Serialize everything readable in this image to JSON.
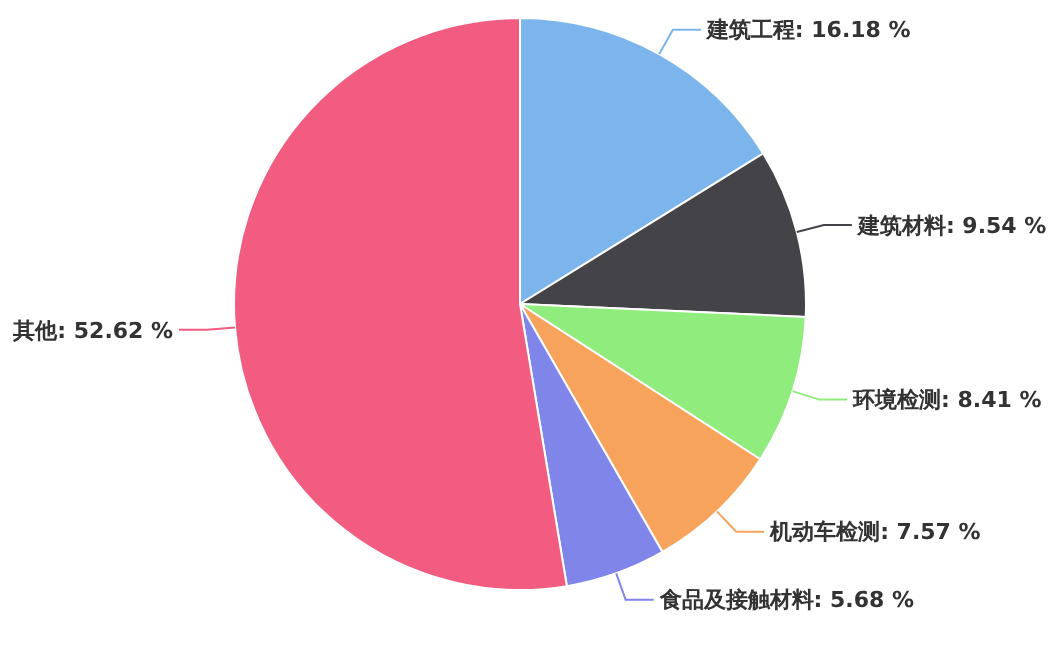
{
  "chart_data": {
    "type": "pie",
    "categories": [
      "建筑工程",
      "建筑材料",
      "环境检测",
      "机动车检测",
      "食品及接触材料",
      "其他"
    ],
    "values": [
      16.18,
      9.54,
      8.41,
      7.57,
      5.68,
      52.62
    ],
    "value_labels": [
      "16.18 %",
      "9.54 %",
      "8.41 %",
      "7.57 %",
      "5.68 %",
      "52.62 %"
    ],
    "colors": [
      "#7cb5ec",
      "#434348",
      "#90ed7d",
      "#f7a35c",
      "#8085e9",
      "#f15c80"
    ]
  }
}
